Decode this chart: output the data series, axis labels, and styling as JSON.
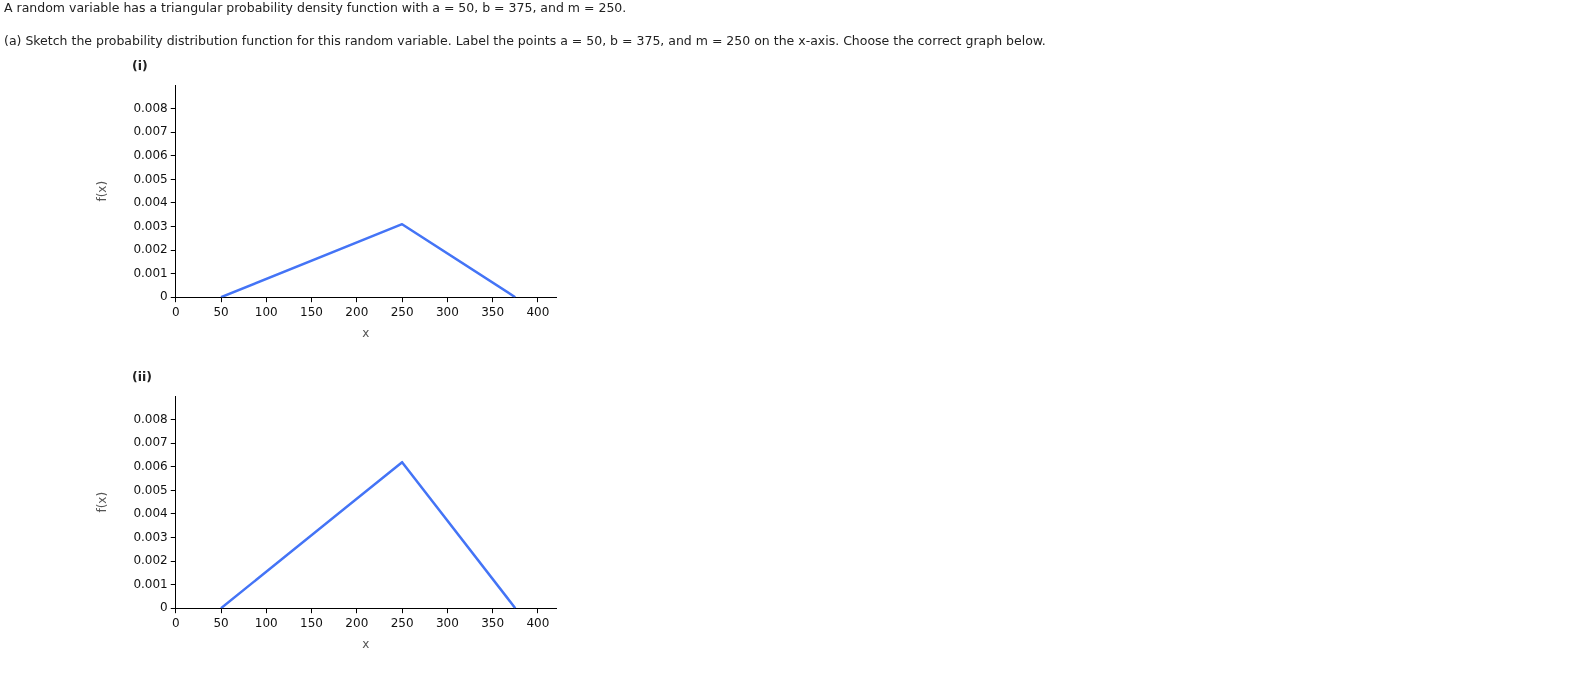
{
  "chart_data": [
    {
      "type": "line",
      "title": "(i)",
      "annotations": [
        "A random variable has a triangular probability density function with a = 50, b = 375, and m = 250.",
        "(a) Sketch the probability distribution function for this random variable. Label the points a = 50, b = 375, and m = 250 on the x-axis. Choose the correct graph below."
      ],
      "xlabel": "x",
      "ylabel": "f(x)",
      "x": [
        50,
        250,
        375
      ],
      "values": [
        0,
        0.0031,
        0
      ],
      "color": "#4474f6",
      "marker": "none",
      "xlim": [
        0,
        420
      ],
      "ylim": [
        0,
        0.009
      ],
      "xticks": [
        0,
        50,
        100,
        150,
        200,
        250,
        300,
        350,
        400
      ],
      "yticks": [
        0,
        0.001,
        0.002,
        0.003,
        0.004,
        0.005,
        0.006,
        0.007,
        0.008
      ]
    },
    {
      "type": "line",
      "title": "(ii)",
      "xlabel": "x",
      "ylabel": "f(x)",
      "x": [
        50,
        250,
        375
      ],
      "values": [
        0,
        0.0062,
        0
      ],
      "color": "#4474f6",
      "marker": "none",
      "xlim": [
        0,
        420
      ],
      "ylim": [
        0,
        0.009
      ],
      "xticks": [
        0,
        50,
        100,
        150,
        200,
        250,
        300,
        350,
        400
      ],
      "yticks": [
        0,
        0.001,
        0.002,
        0.003,
        0.004,
        0.005,
        0.006,
        0.007,
        0.008
      ]
    }
  ]
}
